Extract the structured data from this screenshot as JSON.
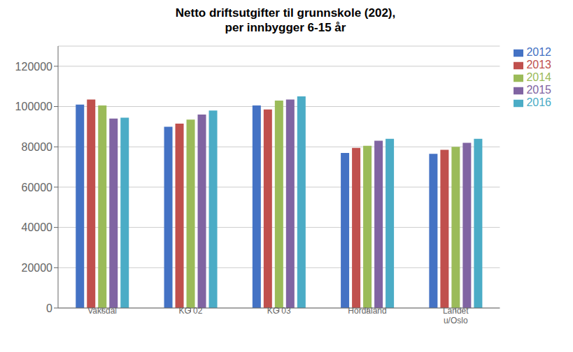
{
  "chart_data": {
    "type": "bar",
    "title": "Netto driftsutgifter til grunnskole (202),\nper innbygger 6-15 år",
    "categories": [
      "Vaksdal",
      "KG 02",
      "KG 03",
      "Hordaland",
      "Landet\nu/Oslo"
    ],
    "series": [
      {
        "name": "2012",
        "color": "#4472C4",
        "values": [
          101000,
          90000,
          100500,
          77000,
          76500
        ]
      },
      {
        "name": "2013",
        "color": "#C0504D",
        "values": [
          103500,
          91500,
          98500,
          79500,
          78500
        ]
      },
      {
        "name": "2014",
        "color": "#9BBB59",
        "values": [
          100500,
          93500,
          103000,
          80500,
          80000
        ]
      },
      {
        "name": "2015",
        "color": "#8064A2",
        "values": [
          94000,
          96000,
          103500,
          83000,
          82000
        ]
      },
      {
        "name": "2016",
        "color": "#4BACC6",
        "values": [
          94500,
          98000,
          105000,
          84000,
          84000
        ]
      }
    ],
    "ylim": [
      0,
      130000
    ],
    "yticks": [
      0,
      20000,
      40000,
      60000,
      80000,
      100000,
      120000
    ],
    "grid": true,
    "legend": "right"
  }
}
